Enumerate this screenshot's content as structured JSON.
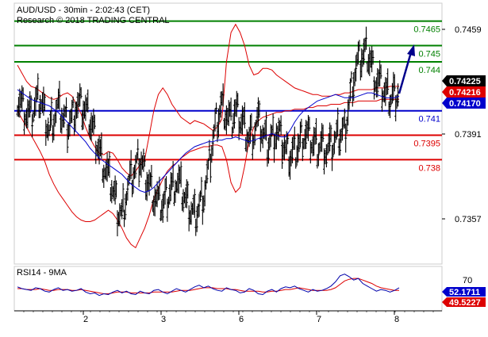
{
  "header": {
    "title": "AUD/USD - 30min - 2:02:43 (CET)",
    "research": "Research © 2018 TRADING CENTRAL"
  },
  "rsi_label": "RSI14 - 9MA",
  "colors": {
    "resistance": "#008000",
    "pivot": "#0000cc",
    "support": "#dd0000",
    "price": "#000000",
    "bollinger": "#dd0000",
    "ma": "#0000cc",
    "arrow": "#00008b",
    "rsi": "#0000aa",
    "rsi_ma": "#dd0000"
  },
  "chart_data": [
    {
      "type": "candlestick",
      "x_ticks": [
        "2",
        "3",
        "6",
        "7",
        "8"
      ],
      "y_ticks": [
        "0.7459",
        "0.7391",
        "0.7357"
      ],
      "ylim": [
        0.7316,
        0.7476
      ],
      "levels": [
        {
          "label": "0.7465",
          "value": 0.7465,
          "kind": "resistance"
        },
        {
          "label": "0.745",
          "value": 0.745,
          "kind": "resistance"
        },
        {
          "label": "0.744",
          "value": 0.744,
          "kind": "resistance"
        },
        {
          "label": "0.741",
          "value": 0.741,
          "kind": "pivot"
        },
        {
          "label": "0.7395",
          "value": 0.7395,
          "kind": "support"
        },
        {
          "label": "0.738",
          "value": 0.738,
          "kind": "support"
        }
      ],
      "badges": [
        {
          "label": "0.74225",
          "value": 0.74225,
          "fill": "#000000",
          "text": "#ffffff"
        },
        {
          "label": "0.74216",
          "value": 0.74216,
          "fill": "#dd0000",
          "text": "#ffffff"
        },
        {
          "label": "0.74170",
          "value": 0.7417,
          "fill": "#0000cc",
          "text": "#ffffff"
        }
      ],
      "price_path": [
        0.7419,
        0.7414,
        0.7409,
        0.7406,
        0.7414,
        0.7418,
        0.7408,
        0.7398,
        0.7407,
        0.7412,
        0.7406,
        0.7402,
        0.7406,
        0.7414,
        0.7412,
        0.741,
        0.7404,
        0.7396,
        0.7386,
        0.7377,
        0.737,
        0.7362,
        0.735,
        0.7346,
        0.736,
        0.7368,
        0.7374,
        0.7381,
        0.7372,
        0.7366,
        0.7359,
        0.7354,
        0.7352,
        0.7358,
        0.7363,
        0.7367,
        0.7362,
        0.7355,
        0.735,
        0.7346,
        0.7352,
        0.736,
        0.7372,
        0.7392,
        0.7406,
        0.7414,
        0.7408,
        0.7402,
        0.741,
        0.7405,
        0.74,
        0.7394,
        0.7398,
        0.7404,
        0.7396,
        0.739,
        0.7394,
        0.7398,
        0.7392,
        0.7386,
        0.7382,
        0.7386,
        0.739,
        0.7397,
        0.7394,
        0.739,
        0.7388,
        0.739,
        0.7386,
        0.7387,
        0.7392,
        0.7396,
        0.7398,
        0.7415,
        0.7432,
        0.744,
        0.7444,
        0.7446,
        0.7438,
        0.7428,
        0.7425,
        0.742,
        0.7418,
        0.742,
        0.7422
      ],
      "ma_path": [
        0.7423,
        0.7421,
        0.7419,
        0.7417,
        0.7416,
        0.7415,
        0.7414,
        0.7413,
        0.7411,
        0.7409,
        0.7406,
        0.7403,
        0.74,
        0.7397,
        0.7394,
        0.7391,
        0.7387,
        0.7384,
        0.7381,
        0.7379,
        0.7377,
        0.7375,
        0.7373,
        0.7371,
        0.7368,
        0.7365,
        0.7363,
        0.7361,
        0.736,
        0.7361,
        0.7363,
        0.7366,
        0.7369,
        0.7372,
        0.7375,
        0.7378,
        0.7381,
        0.7384,
        0.7386,
        0.7388,
        0.7389,
        0.739,
        0.7391,
        0.7391,
        0.7392,
        0.7392,
        0.7393,
        0.7393,
        0.7394,
        0.7393,
        0.7392,
        0.7391,
        0.7392,
        0.7393,
        0.7394,
        0.7395,
        0.7396,
        0.7395,
        0.7394,
        0.7394,
        0.7398,
        0.7403,
        0.7407,
        0.741,
        0.7412,
        0.7414,
        0.7416,
        0.7417,
        0.7418,
        0.7419,
        0.742,
        0.7419,
        0.7418,
        0.7418,
        0.7418,
        0.7419,
        0.742,
        0.7421,
        0.7421,
        0.742,
        0.7419,
        0.7418,
        0.7418,
        0.7418,
        0.7419
      ],
      "bb_upper": [
        0.7438,
        0.7433,
        0.7428,
        0.7425,
        0.7424,
        0.7422,
        0.742,
        0.7418,
        0.7417,
        0.7418,
        0.742,
        0.7421,
        0.7419,
        0.7414,
        0.7408,
        0.74,
        0.7393,
        0.7388,
        0.7384,
        0.7383,
        0.7385,
        0.7384,
        0.738,
        0.7375,
        0.7372,
        0.737,
        0.7373,
        0.7377,
        0.738,
        0.7395,
        0.741,
        0.742,
        0.7424,
        0.742,
        0.7414,
        0.741,
        0.7406,
        0.7404,
        0.7402,
        0.7404,
        0.7403,
        0.7402,
        0.74,
        0.7398,
        0.74,
        0.7405,
        0.744,
        0.7458,
        0.7463,
        0.7458,
        0.745,
        0.7438,
        0.7432,
        0.7433,
        0.7436,
        0.7436,
        0.7435,
        0.7432,
        0.743,
        0.7428,
        0.7426,
        0.7424,
        0.7423,
        0.7422,
        0.7421,
        0.742,
        0.742,
        0.7419,
        0.7419,
        0.7419,
        0.742,
        0.742,
        0.7421,
        0.7421,
        0.7422,
        0.7423,
        0.7423,
        0.7423,
        0.7423,
        0.7424,
        0.7424,
        0.7424,
        0.7425,
        0.7425,
        0.7425
      ],
      "bb_lower": [
        0.741,
        0.7405,
        0.74,
        0.7395,
        0.739,
        0.7385,
        0.7379,
        0.7371,
        0.7365,
        0.736,
        0.7356,
        0.7352,
        0.7348,
        0.7345,
        0.7343,
        0.7342,
        0.7342,
        0.7343,
        0.7345,
        0.7347,
        0.7349,
        0.7347,
        0.7343,
        0.7338,
        0.7332,
        0.7328,
        0.7326,
        0.7332,
        0.7338,
        0.7346,
        0.7356,
        0.7362,
        0.7368,
        0.7373,
        0.7376,
        0.7378,
        0.7381,
        0.7383,
        0.7385,
        0.7386,
        0.7387,
        0.7388,
        0.7388,
        0.7389,
        0.7389,
        0.7388,
        0.738,
        0.7366,
        0.736,
        0.7363,
        0.7376,
        0.7392,
        0.74,
        0.7404,
        0.7406,
        0.7407,
        0.7408,
        0.7409,
        0.7409,
        0.741,
        0.741,
        0.7411,
        0.7411,
        0.7411,
        0.7412,
        0.7412,
        0.7413,
        0.7413,
        0.7413,
        0.7414,
        0.7414,
        0.7414,
        0.7415,
        0.7415,
        0.7415,
        0.7416,
        0.7416,
        0.7416,
        0.7416,
        0.7416,
        0.7417,
        0.7417,
        0.7417,
        0.7417,
        0.7417
      ]
    },
    {
      "type": "line",
      "series": [
        {
          "values": [
            54,
            52,
            51,
            50,
            53,
            52,
            49,
            48,
            51,
            53,
            50,
            51,
            49,
            50,
            52,
            48,
            46,
            47,
            44,
            46,
            45,
            48,
            50,
            47,
            49,
            46,
            45,
            49,
            47,
            46,
            50,
            51,
            48,
            46,
            49,
            52,
            50,
            48,
            51,
            54,
            56,
            53,
            55,
            52,
            50,
            49,
            53,
            51,
            50,
            47,
            48,
            52,
            50,
            46,
            45,
            49,
            51,
            48,
            52,
            54,
            53,
            55,
            52,
            50,
            48,
            51,
            49,
            50,
            52,
            55,
            60,
            67,
            69,
            66,
            62,
            64,
            58,
            55,
            52,
            49,
            51,
            50,
            48,
            50,
            53
          ]
        },
        {
          "values": [
            52,
            52,
            51,
            51,
            51,
            52,
            51,
            50,
            50,
            51,
            51,
            51,
            50,
            50,
            51,
            50,
            49,
            48,
            47,
            46,
            46,
            47,
            48,
            48,
            48,
            47,
            47,
            47,
            47,
            47,
            48,
            48,
            48,
            48,
            48,
            49,
            50,
            50,
            50,
            51,
            52,
            53,
            53,
            53,
            52,
            52,
            52,
            51,
            51,
            50,
            49,
            49,
            49,
            49,
            48,
            48,
            49,
            49,
            50,
            51,
            51,
            52,
            53,
            52,
            51,
            50,
            50,
            50,
            50,
            51,
            53,
            57,
            61,
            63,
            64,
            64,
            62,
            60,
            58,
            55,
            53,
            52,
            51,
            50,
            50
          ]
        }
      ],
      "y_ticks": [
        "70"
      ],
      "badges": [
        {
          "label": "52.1711",
          "value": 52.1711,
          "fill": "#0000cc",
          "text": "#ffffff"
        },
        {
          "label": "49.5227",
          "value": 49.5227,
          "fill": "#dd0000",
          "text": "#ffffff"
        }
      ],
      "ylim": [
        26,
        78
      ]
    }
  ]
}
